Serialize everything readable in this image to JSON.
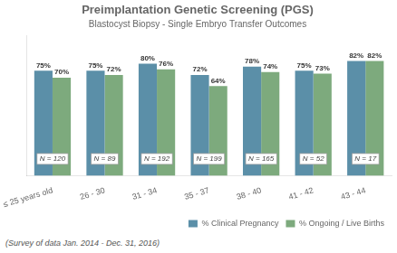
{
  "chart_data": {
    "type": "bar",
    "title": "Preimplantation Genetic Screening (PGS)",
    "subtitle": "Blastocyst Biopsy - Single Embryo Transfer Outcomes",
    "footnote": "(Survey of data Jan. 2014 - Dec. 31, 2016)",
    "categories": [
      "≤ 25 years old",
      "26 - 30",
      "31 - 34",
      "35 - 37",
      "38 - 40",
      "41 - 42",
      "43 - 44"
    ],
    "series": [
      {
        "name": "% Clinical Pregnancy",
        "color": "#5b8fa8",
        "values": [
          75,
          75,
          80,
          72,
          78,
          75,
          82
        ],
        "value_labels": [
          "75%",
          "75%",
          "80%",
          "72%",
          "78%",
          "75%",
          "82%"
        ]
      },
      {
        "name": "% Ongoing / Live Births",
        "color": "#7daa7d",
        "values": [
          70,
          72,
          76,
          64,
          74,
          73,
          82
        ],
        "value_labels": [
          "70%",
          "72%",
          "76%",
          "64%",
          "74%",
          "73%",
          "82%"
        ]
      }
    ],
    "annotations": [
      "N = 120",
      "N = 89",
      "N = 192",
      "N = 199",
      "N = 165",
      "N = 52",
      "N = 17"
    ],
    "ylim": [
      0,
      100
    ],
    "grid": false,
    "legend": "lower right",
    "data_labels": true,
    "tick_labels": "x"
  }
}
